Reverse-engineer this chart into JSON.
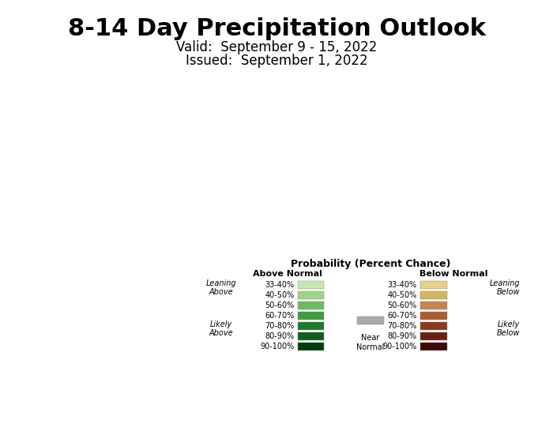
{
  "title": "8-14 Day Precipitation Outlook",
  "valid_text": "Valid:  September 9 - 15, 2022",
  "issued_text": "Issued:  September 1, 2022",
  "title_fontsize": 22,
  "subtitle_fontsize": 12,
  "background_color": "#ffffff",
  "near_normal_color": "#999999",
  "below_33_40_color": "#e8d08a",
  "below_40_50_color": "#d4b55a",
  "above_33_40_color": "#c8e6b0",
  "above_40_50_color": "#9ed688",
  "above_50_60_color": "#6abe5a",
  "above_60_70_color": "#3d9e40",
  "above_70_80_color": "#1e7a2e",
  "above_80_90_color": "#0d5e1e",
  "above_90_100_color": "#003d0d",
  "label_near_normal": "Near\nNormal",
  "label_below": "Below",
  "label_above": "Above",
  "legend_title": "Probability (Percent Chance)",
  "legend_above_label": "Above Normal",
  "legend_below_label": "Below Normal",
  "legend_near_normal_label": "Near\nNormal",
  "leaning_above_label": "Leaning\nAbove",
  "likely_above_label": "Likely\nAbove",
  "leaning_below_label": "Leaning\nBelow",
  "likely_below_label": "Likely\nBelow",
  "above_colors": [
    "#c8e6b0",
    "#9ed688",
    "#6abe5a",
    "#3d9e40",
    "#1e7a2e",
    "#0d5e1e",
    "#003d0d"
  ],
  "above_labels": [
    "33-40%",
    "40-50%",
    "50-60%",
    "60-70%",
    "70-80%",
    "80-90%",
    "90-100%"
  ],
  "below_colors": [
    "#e8d08a",
    "#d4b55a",
    "#c8854a",
    "#b05a30",
    "#8b3a20",
    "#6b2010",
    "#3d0808"
  ],
  "below_labels": [
    "33-40%",
    "40-50%",
    "50-60%",
    "60-70%",
    "70-80%",
    "80-90%",
    "90-100%"
  ],
  "near_normal_gray": "#aaaaaa",
  "map_background": "#aaaaaa",
  "ocean_color": "#ffffff",
  "state_border_color": "#ffffff",
  "state_border_lw": 0.5,
  "country_border_color": "#555555",
  "country_border_lw": 1.0
}
